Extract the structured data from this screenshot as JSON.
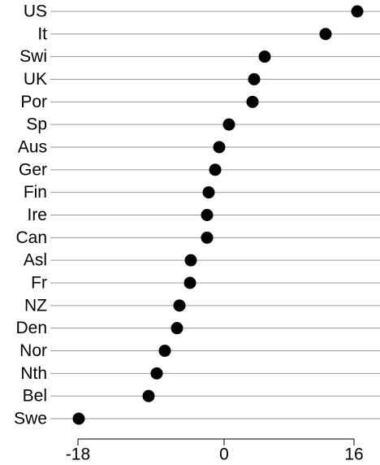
{
  "chart_data": {
    "type": "dot",
    "categories": [
      "US",
      "It",
      "Swi",
      "UK",
      "Por",
      "Sp",
      "Aus",
      "Ger",
      "Fin",
      "Ire",
      "Can",
      "Asl",
      "Fr",
      "NZ",
      "Den",
      "Nor",
      "Nth",
      "Bel",
      "Swe"
    ],
    "values": [
      16.4,
      12.5,
      5.0,
      3.7,
      3.5,
      0.6,
      -0.6,
      -1.1,
      -1.9,
      -2.1,
      -2.1,
      -4.1,
      -4.2,
      -5.5,
      -5.8,
      -7.3,
      -8.3,
      -9.3,
      -17.9
    ],
    "color": "#000000",
    "xlim": [
      -21.4,
      19.2
    ],
    "xticks": [
      -18,
      0,
      16
    ]
  }
}
